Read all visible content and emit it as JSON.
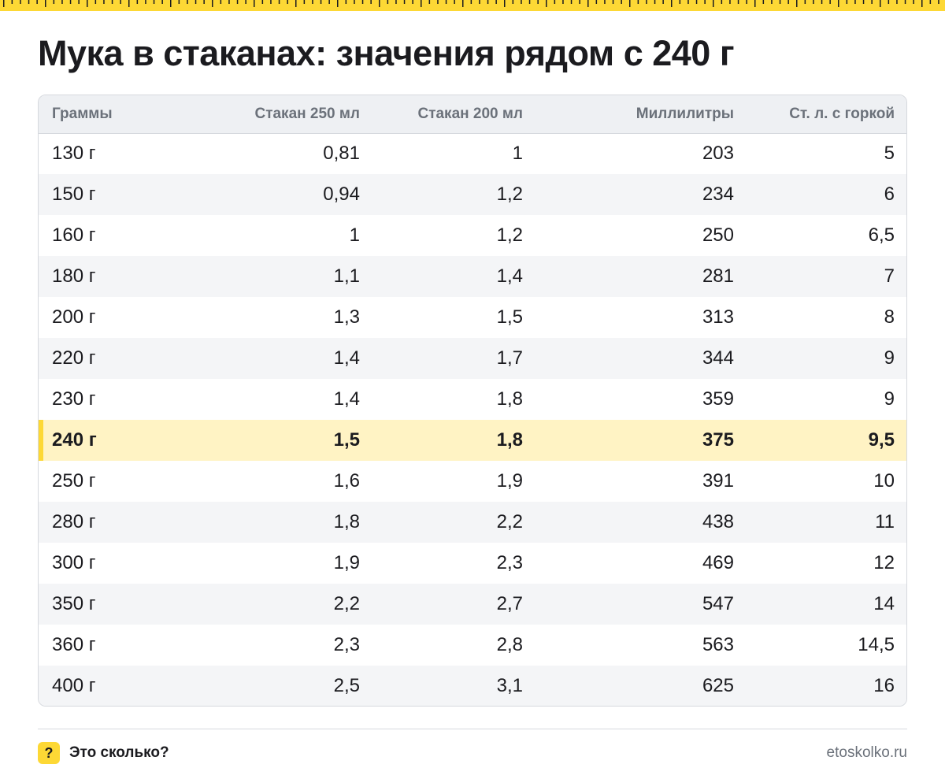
{
  "colors": {
    "accent": "#fdd835",
    "highlight_row": "#fff3c4",
    "header_bg": "#eef0f3",
    "muted_text": "#6b717a"
  },
  "title": "Мука в стаканах: значения рядом с 240 г",
  "table": {
    "columns": [
      "Граммы",
      "Стакан 250 мл",
      "Стакан 200 мл",
      "Миллилитры",
      "Ст. л. с горкой"
    ],
    "highlighted_row_index": 7,
    "rows": [
      [
        "130 г",
        "0,81",
        "1",
        "203",
        "5"
      ],
      [
        "150 г",
        "0,94",
        "1,2",
        "234",
        "6"
      ],
      [
        "160 г",
        "1",
        "1,2",
        "250",
        "6,5"
      ],
      [
        "180 г",
        "1,1",
        "1,4",
        "281",
        "7"
      ],
      [
        "200 г",
        "1,3",
        "1,5",
        "313",
        "8"
      ],
      [
        "220 г",
        "1,4",
        "1,7",
        "344",
        "9"
      ],
      [
        "230 г",
        "1,4",
        "1,8",
        "359",
        "9"
      ],
      [
        "240 г",
        "1,5",
        "1,8",
        "375",
        "9,5"
      ],
      [
        "250 г",
        "1,6",
        "1,9",
        "391",
        "10"
      ],
      [
        "280 г",
        "1,8",
        "2,2",
        "438",
        "11"
      ],
      [
        "300 г",
        "1,9",
        "2,3",
        "469",
        "12"
      ],
      [
        "350 г",
        "2,2",
        "2,7",
        "547",
        "14"
      ],
      [
        "360 г",
        "2,3",
        "2,8",
        "563",
        "14,5"
      ],
      [
        "400 г",
        "2,5",
        "3,1",
        "625",
        "16"
      ]
    ]
  },
  "footer": {
    "badge_icon": "question-mark-icon",
    "badge": "?",
    "brand": "Это сколько?",
    "site": "etoskolko.ru"
  }
}
